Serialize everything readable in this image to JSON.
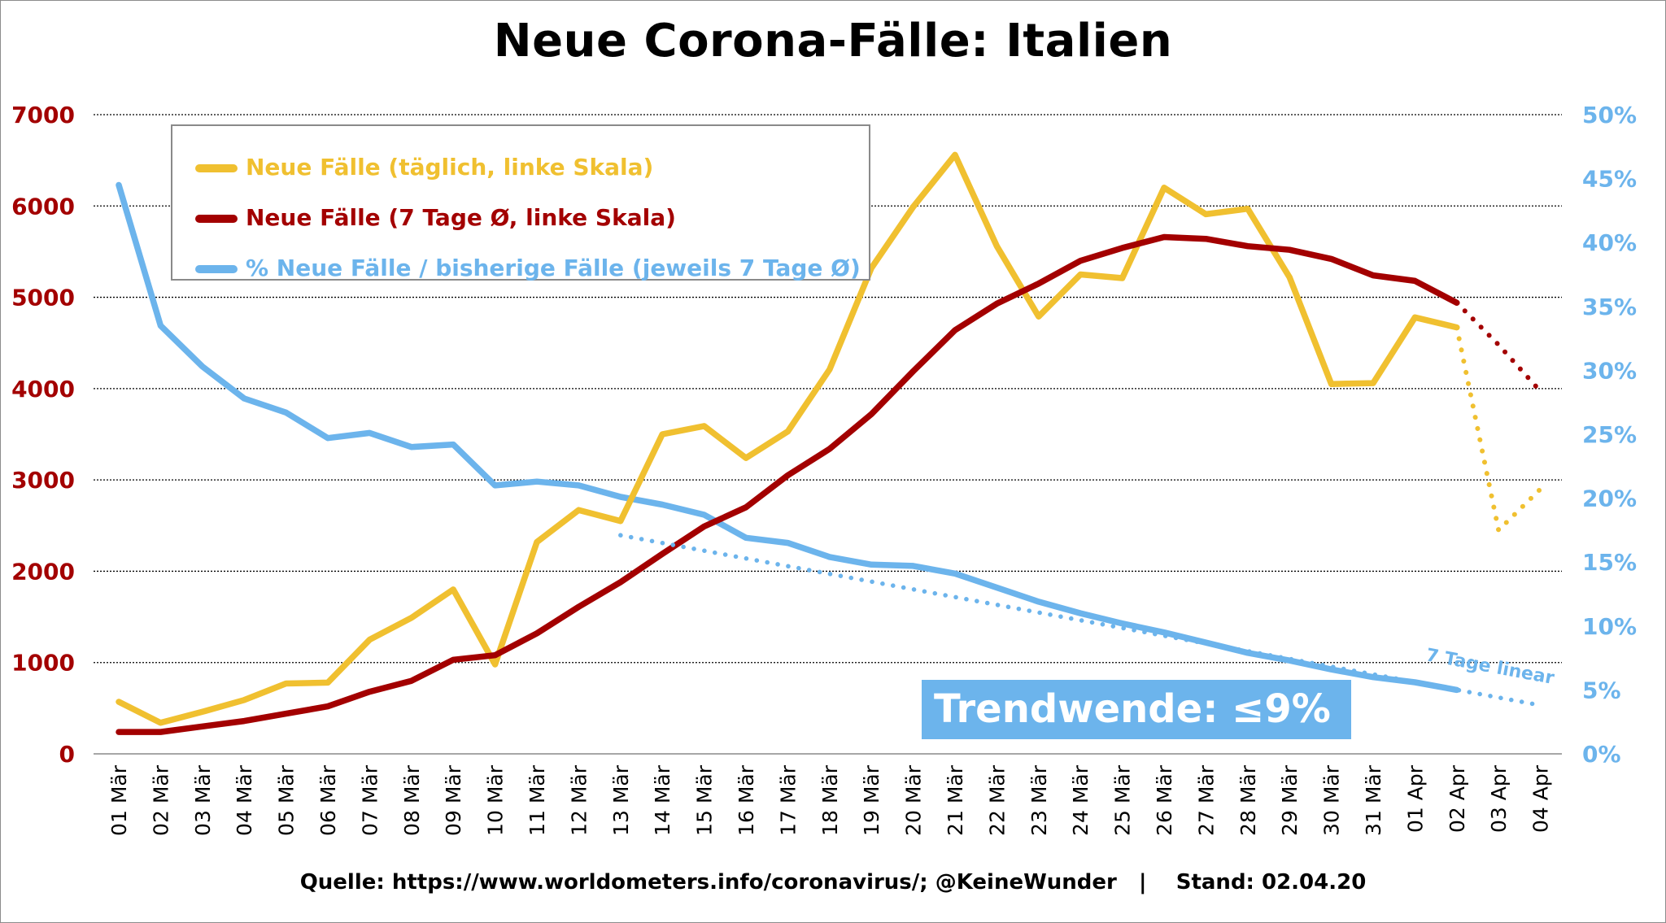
{
  "chart_data": {
    "type": "line",
    "title": "Neue Corona-Fälle: Italien",
    "categories": [
      "01 Mär",
      "02 Mär",
      "03 Mär",
      "04 Mär",
      "05 Mär",
      "06 Mär",
      "07 Mär",
      "08 Mär",
      "09 Mär",
      "10 Mär",
      "11 Mär",
      "12 Mär",
      "13 Mär",
      "14 Mär",
      "15 Mär",
      "16 Mär",
      "17 Mär",
      "18 Mär",
      "19 Mär",
      "20 Mär",
      "21 Mär",
      "22 Mär",
      "23 Mär",
      "24 Mär",
      "25 Mär",
      "26 Mär",
      "27 Mär",
      "28 Mär",
      "29 Mär",
      "30 Mär",
      "31 Mär",
      "01 Apr",
      "02 Apr",
      "03 Apr",
      "04 Apr"
    ],
    "y_left": {
      "ylim": [
        0,
        7000
      ],
      "ticks": [
        "0",
        "1000",
        "2000",
        "3000",
        "4000",
        "5000",
        "6000",
        "7000"
      ]
    },
    "y_right": {
      "ylim": [
        0,
        50
      ],
      "ticks": [
        "0%",
        "5%",
        "10%",
        "15%",
        "20%",
        "25%",
        "30%",
        "35%",
        "40%",
        "45%",
        "50%"
      ]
    },
    "grid": "horizontal dotted",
    "legend_placement": "top-left",
    "series": [
      {
        "name": "Neue Fälle (täglich, linke Skala)",
        "axis": "left",
        "color": "#f0c030",
        "values": [
          570,
          340,
          460,
          590,
          770,
          780,
          1250,
          1490,
          1800,
          980,
          2320,
          2670,
          2550,
          3500,
          3590,
          3240,
          3530,
          4210,
          5320,
          5990,
          6560,
          5560,
          4790,
          5250,
          5210,
          6200,
          5910,
          5970,
          5220,
          4050,
          4060,
          4780,
          4670,
          null,
          null
        ],
        "forecast": {
          "categories": [
            "02 Apr",
            "03 Apr",
            "04 Apr"
          ],
          "values": [
            4670,
            2450,
            2900
          ]
        }
      },
      {
        "name": "Neue Fälle (7 Tage Ø, linke Skala)",
        "axis": "left",
        "color": "#a30000",
        "values": [
          240,
          240,
          300,
          360,
          440,
          520,
          680,
          800,
          1030,
          1080,
          1320,
          1610,
          1880,
          2190,
          2490,
          2700,
          3050,
          3340,
          3720,
          4190,
          4640,
          4930,
          5150,
          5400,
          5540,
          5660,
          5640,
          5560,
          5520,
          5420,
          5240,
          5180,
          4940,
          null,
          null
        ],
        "forecast": {
          "categories": [
            "02 Apr",
            "03 Apr",
            "04 Apr"
          ],
          "values": [
            4940,
            4480,
            3970
          ]
        }
      },
      {
        "name": "% Neue Fälle / bisherige Fälle (jeweils 7 Tage Ø)",
        "axis": "right",
        "color": "#6cb4ec",
        "values": [
          44.5,
          33.5,
          30.3,
          27.8,
          26.7,
          24.7,
          25.1,
          24.0,
          24.2,
          21.0,
          21.3,
          21.0,
          20.1,
          19.5,
          18.7,
          16.9,
          16.5,
          15.4,
          14.8,
          14.7,
          14.1,
          13.0,
          11.9,
          11.0,
          10.2,
          9.5,
          8.7,
          7.9,
          7.3,
          6.6,
          6.0,
          5.6,
          5.0,
          null,
          null
        ]
      }
    ],
    "trendline": {
      "label": "7 Tage linear",
      "axis": "right",
      "color": "#6cb4ec",
      "from": {
        "category": "13 Mär",
        "value": 17.1
      },
      "to": {
        "category": "04 Apr",
        "value": 3.8
      }
    },
    "annotations": {
      "trend_box": "Trendwende: ≤9%",
      "source": "Quelle: https://www.worldometers.info/coronavirus/; @KeineWunder   |    Stand: 02.04.20"
    }
  }
}
